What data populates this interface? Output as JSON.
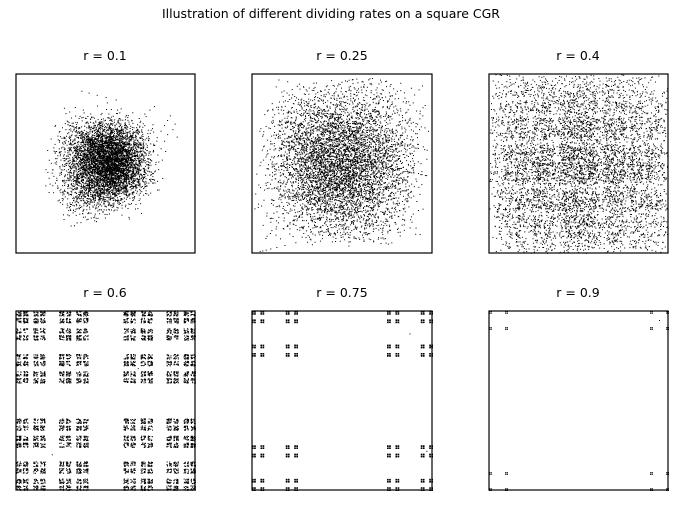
{
  "figure": {
    "title": "Illustration of different dividing rates on a square CGR"
  },
  "chart_data": [
    {
      "type": "scatter",
      "title": "r = 0.1",
      "r": 0.1,
      "xlim": [
        0,
        1
      ],
      "ylim": [
        0,
        1
      ],
      "grid": false,
      "axes_ticks": false
    },
    {
      "type": "scatter",
      "title": "r = 0.25",
      "r": 0.25,
      "xlim": [
        0,
        1
      ],
      "ylim": [
        0,
        1
      ],
      "grid": false,
      "axes_ticks": false
    },
    {
      "type": "scatter",
      "title": "r = 0.4",
      "r": 0.4,
      "xlim": [
        0,
        1
      ],
      "ylim": [
        0,
        1
      ],
      "grid": false,
      "axes_ticks": false
    },
    {
      "type": "scatter",
      "title": "r = 0.6",
      "r": 0.6,
      "xlim": [
        0,
        1
      ],
      "ylim": [
        0,
        1
      ],
      "grid": false,
      "axes_ticks": false
    },
    {
      "type": "scatter",
      "title": "r = 0.75",
      "r": 0.75,
      "xlim": [
        0,
        1
      ],
      "ylim": [
        0,
        1
      ],
      "grid": false,
      "axes_ticks": false
    },
    {
      "type": "scatter",
      "title": "r = 0.9",
      "r": 0.9,
      "xlim": [
        0,
        1
      ],
      "ylim": [
        0,
        1
      ],
      "grid": false,
      "axes_ticks": false
    }
  ]
}
